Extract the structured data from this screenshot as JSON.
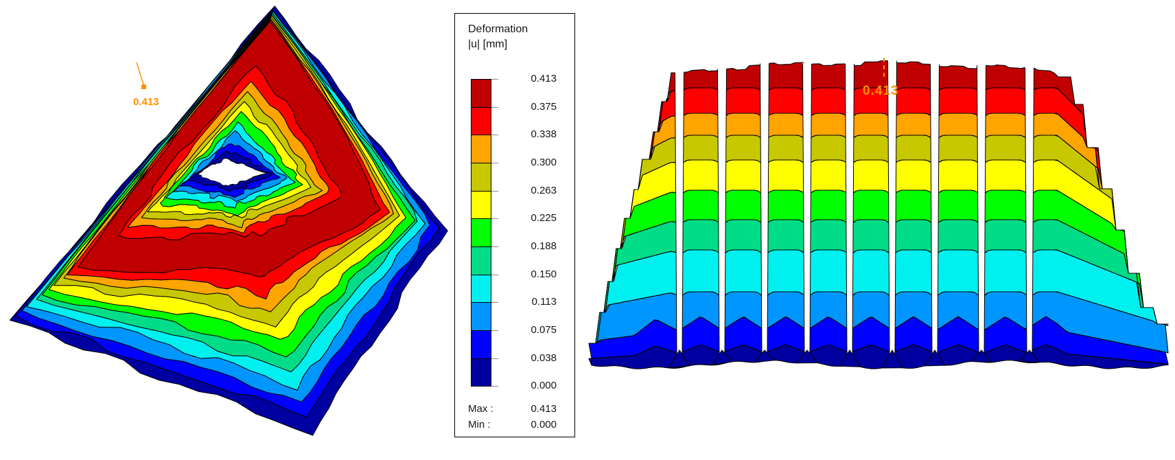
{
  "legend": {
    "title_line1": "Deformation",
    "title_line2": "|u| [mm]",
    "levels": [
      "0.413",
      "0.375",
      "0.338",
      "0.300",
      "0.263",
      "0.225",
      "0.188",
      "0.150",
      "0.113",
      "0.075",
      "0.038",
      "0.000"
    ],
    "colors": [
      "#C00000",
      "#FF0000",
      "#FFA500",
      "#C8C800",
      "#FFFF00",
      "#00FF00",
      "#00DC87",
      "#00F0F0",
      "#0096FF",
      "#0000FF",
      "#0000A0"
    ],
    "max_label": "Max :",
    "max_value": "0.413",
    "min_label": "Min :",
    "min_value": "0.000"
  },
  "annotations": {
    "color": "#FF9100",
    "left": {
      "text": "0.413"
    },
    "right": {
      "text": "0.413"
    }
  },
  "chart_data": {
    "type": "heatmap",
    "title": "Deformation |u| [mm]",
    "units": "mm",
    "levels": [
      0.413,
      0.375,
      0.338,
      0.3,
      0.263,
      0.225,
      0.188,
      0.15,
      0.113,
      0.075,
      0.038,
      0.0
    ],
    "palette": [
      "#C00000",
      "#FF0000",
      "#FFA500",
      "#C8C800",
      "#FFFF00",
      "#00FF00",
      "#00DC87",
      "#00F0F0",
      "#0096FF",
      "#0000FF",
      "#0000A0"
    ],
    "max": 0.413,
    "min": 0.0,
    "legend_position": "center-between-views",
    "views": [
      {
        "name": "isometric-contour-view",
        "annotation_value": 0.413
      },
      {
        "name": "front-elevation-contour-view",
        "annotation_value": 0.413
      }
    ]
  }
}
